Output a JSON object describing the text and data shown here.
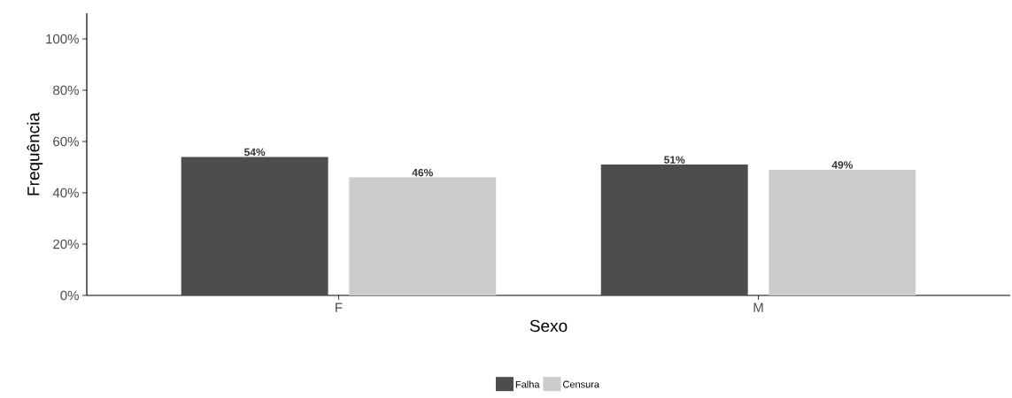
{
  "chart_data": {
    "type": "bar",
    "xlabel": "Sexo",
    "ylabel": "Frequência",
    "categories": [
      "F",
      "M"
    ],
    "series": [
      {
        "name": "Falha",
        "color": "#4d4d4d",
        "values": [
          54,
          51
        ],
        "value_labels": [
          "54%",
          "51%"
        ]
      },
      {
        "name": "Censura",
        "color": "#cccccc",
        "values": [
          46,
          49
        ],
        "value_labels": [
          "46%",
          "49%"
        ]
      }
    ],
    "ylim": [
      0,
      110
    ],
    "yticks": [
      {
        "value": 0,
        "label": "0%"
      },
      {
        "value": 20,
        "label": "20%"
      },
      {
        "value": 40,
        "label": "40%"
      },
      {
        "value": 60,
        "label": "60%"
      },
      {
        "value": 80,
        "label": "80%"
      },
      {
        "value": 100,
        "label": "100%"
      }
    ],
    "grid": false,
    "legend": "bottom"
  }
}
